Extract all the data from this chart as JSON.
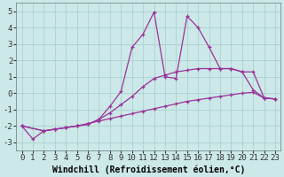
{
  "xlabel": "Windchill (Refroidissement éolien,°C)",
  "xlim": [
    -0.5,
    23.5
  ],
  "ylim": [
    -3.5,
    5.5
  ],
  "xticks": [
    0,
    1,
    2,
    3,
    4,
    5,
    6,
    7,
    8,
    9,
    10,
    11,
    12,
    13,
    14,
    15,
    16,
    17,
    18,
    19,
    20,
    21,
    22,
    23
  ],
  "yticks": [
    -3,
    -2,
    -1,
    0,
    1,
    2,
    3,
    4,
    5
  ],
  "background_color": "#cce8e8",
  "grid_color": "#a8cccc",
  "line_color": "#993399",
  "line1_x": [
    0,
    1,
    2,
    3,
    4,
    5,
    6,
    7,
    8,
    9,
    10,
    11,
    12,
    13,
    14,
    15,
    16,
    17,
    18,
    19,
    20,
    21,
    22,
    23
  ],
  "line1_y": [
    -2.0,
    -2.8,
    -2.3,
    -2.2,
    -2.1,
    -2.0,
    -1.85,
    -1.7,
    -1.55,
    -1.4,
    -1.25,
    -1.1,
    -0.95,
    -0.8,
    -0.65,
    -0.5,
    -0.4,
    -0.3,
    -0.2,
    -0.1,
    0.0,
    0.05,
    -0.3,
    -0.35
  ],
  "line2_x": [
    0,
    2,
    3,
    4,
    5,
    6,
    7,
    8,
    9,
    10,
    11,
    12,
    13,
    14,
    15,
    16,
    17,
    18,
    19,
    20,
    21,
    22,
    23
  ],
  "line2_y": [
    -2.0,
    -2.3,
    -2.2,
    -2.1,
    -2.0,
    -1.9,
    -1.6,
    -1.2,
    -0.7,
    -0.2,
    0.4,
    0.9,
    1.1,
    1.3,
    1.4,
    1.5,
    1.5,
    1.5,
    1.5,
    1.3,
    1.3,
    -0.3,
    -0.35
  ],
  "line3_x": [
    0,
    2,
    3,
    4,
    5,
    6,
    7,
    8,
    9,
    10,
    11,
    12,
    13,
    14,
    15,
    16,
    17,
    18,
    19,
    20,
    21,
    22,
    23
  ],
  "line3_y": [
    -2.0,
    -2.3,
    -2.2,
    -2.1,
    -2.0,
    -1.9,
    -1.6,
    -0.8,
    0.1,
    2.8,
    3.6,
    4.95,
    1.0,
    0.9,
    4.7,
    4.0,
    2.8,
    1.5,
    1.5,
    1.3,
    0.2,
    -0.3,
    -0.35
  ],
  "xlabel_fontsize": 7,
  "tick_fontsize": 6.5
}
